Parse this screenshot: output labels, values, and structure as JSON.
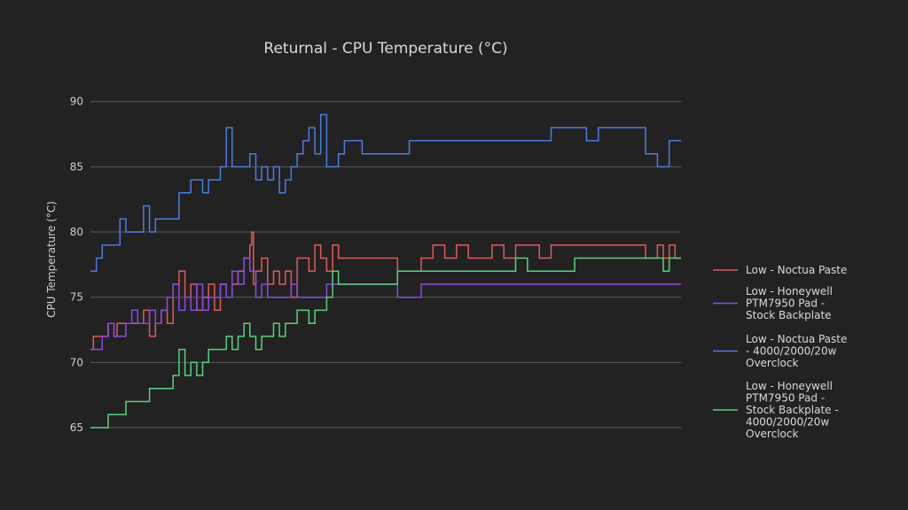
{
  "chart_data": {
    "type": "line",
    "title": "Returnal - CPU Temperature (°C)",
    "xlabel": "",
    "ylabel": "CPU Temperature (°C)",
    "ylim": [
      65,
      91
    ],
    "yticks": [
      65,
      70,
      75,
      80,
      85,
      90
    ],
    "xlim": [
      0,
      100
    ],
    "grid": true,
    "legend_position": "right",
    "series": [
      {
        "name": "Low - Noctua Paste",
        "color": "#e05a5a",
        "x": [
          0,
          0.5,
          2.5,
          3,
          4,
          4.5,
          5,
          8,
          9,
          10,
          11,
          12,
          13,
          14,
          15,
          16,
          17,
          18,
          19,
          20,
          21,
          22,
          23,
          24,
          25,
          26,
          27,
          27.3,
          27.6,
          28,
          29,
          30,
          31,
          32,
          33,
          34,
          35,
          36,
          37,
          38,
          39,
          40,
          41,
          42,
          43,
          44,
          45,
          46,
          47,
          48,
          50,
          52,
          54,
          56,
          58,
          60,
          62,
          64,
          66,
          68,
          70,
          72,
          74,
          76,
          78,
          80,
          82,
          84,
          86,
          88,
          90,
          92,
          94,
          96,
          97,
          98,
          99,
          100
        ],
        "values": [
          71,
          72,
          72,
          73,
          72,
          73,
          73,
          73,
          74,
          72,
          73,
          74,
          73,
          76,
          77,
          75,
          76,
          74,
          75,
          76,
          74,
          76,
          75,
          76,
          77,
          78,
          79,
          80,
          76,
          77,
          78,
          76,
          77,
          76,
          77,
          75,
          78,
          78,
          77,
          79,
          78,
          77,
          79,
          78,
          78,
          78,
          78,
          78,
          78,
          78,
          78,
          77,
          77,
          78,
          79,
          78,
          79,
          78,
          78,
          79,
          78,
          79,
          79,
          78,
          79,
          79,
          79,
          79,
          79,
          79,
          79,
          79,
          78,
          79,
          78,
          79,
          78,
          78
        ]
      },
      {
        "name": "Low - Honeywell PTM7950 Pad - Stock Backplate",
        "color": "#8a4ae0",
        "x": [
          0,
          1,
          2,
          3,
          4,
          5,
          6,
          7,
          8,
          9,
          10,
          11,
          12,
          13,
          14,
          15,
          16,
          17,
          18,
          19,
          20,
          21,
          22,
          23,
          24,
          25,
          26,
          27,
          28,
          29,
          30,
          31,
          32,
          33,
          34,
          35,
          36,
          37,
          38,
          40,
          42,
          44,
          46,
          48,
          50,
          52,
          54,
          56,
          58,
          60,
          62,
          64,
          66,
          68,
          70,
          72,
          74,
          76,
          78,
          80,
          82,
          84,
          86,
          88,
          90,
          92,
          94,
          96,
          98,
          100
        ],
        "values": [
          71,
          71,
          72,
          73,
          72,
          72,
          73,
          74,
          73,
          73,
          74,
          73,
          74,
          75,
          76,
          74,
          75,
          74,
          76,
          74,
          75,
          75,
          76,
          75,
          77,
          76,
          78,
          77,
          75,
          76,
          75,
          75,
          75,
          75,
          76,
          75,
          75,
          75,
          75,
          76,
          76,
          76,
          76,
          76,
          76,
          75,
          75,
          76,
          76,
          76,
          76,
          76,
          76,
          76,
          76,
          76,
          76,
          76,
          76,
          76,
          76,
          76,
          76,
          76,
          76,
          76,
          76,
          76,
          76,
          76
        ]
      },
      {
        "name": "Low - Noctua Paste - 4000/2000/20w Overclock",
        "color": "#4a7de0",
        "x": [
          0,
          1,
          2,
          3,
          4,
          5,
          6,
          7,
          8,
          9,
          10,
          11,
          12,
          13,
          14,
          15,
          16,
          17,
          18,
          19,
          20,
          21,
          22,
          23,
          24,
          25,
          26,
          27,
          28,
          29,
          30,
          31,
          32,
          33,
          34,
          35,
          36,
          37,
          38,
          39,
          40,
          41,
          42,
          43,
          44,
          45,
          46,
          48,
          50,
          52,
          54,
          56,
          58,
          60,
          62,
          64,
          66,
          68,
          70,
          72,
          74,
          76,
          78,
          80,
          82,
          84,
          86,
          88,
          90,
          92,
          94,
          96,
          98,
          100
        ],
        "values": [
          77,
          78,
          79,
          79,
          79,
          81,
          80,
          80,
          80,
          82,
          80,
          81,
          81,
          81,
          81,
          83,
          83,
          84,
          84,
          83,
          84,
          84,
          85,
          88,
          85,
          85,
          85,
          86,
          84,
          85,
          84,
          85,
          83,
          84,
          85,
          86,
          87,
          88,
          86,
          89,
          85,
          85,
          86,
          87,
          87,
          87,
          86,
          86,
          86,
          86,
          87,
          87,
          87,
          87,
          87,
          87,
          87,
          87,
          87,
          87,
          87,
          87,
          88,
          88,
          88,
          87,
          88,
          88,
          88,
          88,
          86,
          85,
          87,
          87
        ]
      },
      {
        "name": "Low - Honeywell PTM7950 Pad - Stock Backplate - 4000/2000/20w Overclock",
        "color": "#5ad17a",
        "x": [
          0,
          2,
          3,
          5,
          6,
          8,
          10,
          12,
          13,
          14,
          15,
          16,
          17,
          18,
          19,
          20,
          21,
          22,
          23,
          24,
          25,
          26,
          27,
          28,
          29,
          30,
          31,
          32,
          33,
          34,
          35,
          36,
          37,
          38,
          39,
          40,
          41,
          42,
          44,
          46,
          48,
          50,
          52,
          54,
          56,
          58,
          60,
          62,
          64,
          66,
          68,
          70,
          72,
          74,
          76,
          78,
          80,
          82,
          84,
          86,
          88,
          90,
          92,
          94,
          96,
          97,
          98,
          99,
          100
        ],
        "values": [
          65,
          65,
          66,
          66,
          67,
          67,
          68,
          68,
          68,
          69,
          71,
          69,
          70,
          69,
          70,
          71,
          71,
          71,
          72,
          71,
          72,
          73,
          72,
          71,
          72,
          72,
          73,
          72,
          73,
          73,
          74,
          74,
          73,
          74,
          74,
          75,
          77,
          76,
          76,
          76,
          76,
          76,
          77,
          77,
          77,
          77,
          77,
          77,
          77,
          77,
          77,
          77,
          78,
          77,
          77,
          77,
          77,
          78,
          78,
          78,
          78,
          78,
          78,
          78,
          78,
          77,
          78,
          78,
          78
        ]
      }
    ],
    "legend": [
      {
        "lines": [
          "Low - Noctua Paste"
        ]
      },
      {
        "lines": [
          "Low - Honeywell",
          "PTM7950 Pad -",
          "Stock Backplate"
        ]
      },
      {
        "lines": [
          "Low - Noctua Paste",
          "- 4000/2000/20w",
          "Overclock"
        ]
      },
      {
        "lines": [
          "Low - Honeywell",
          "PTM7950 Pad -",
          "Stock Backplate -",
          "4000/2000/20w",
          "Overclock"
        ]
      }
    ]
  }
}
